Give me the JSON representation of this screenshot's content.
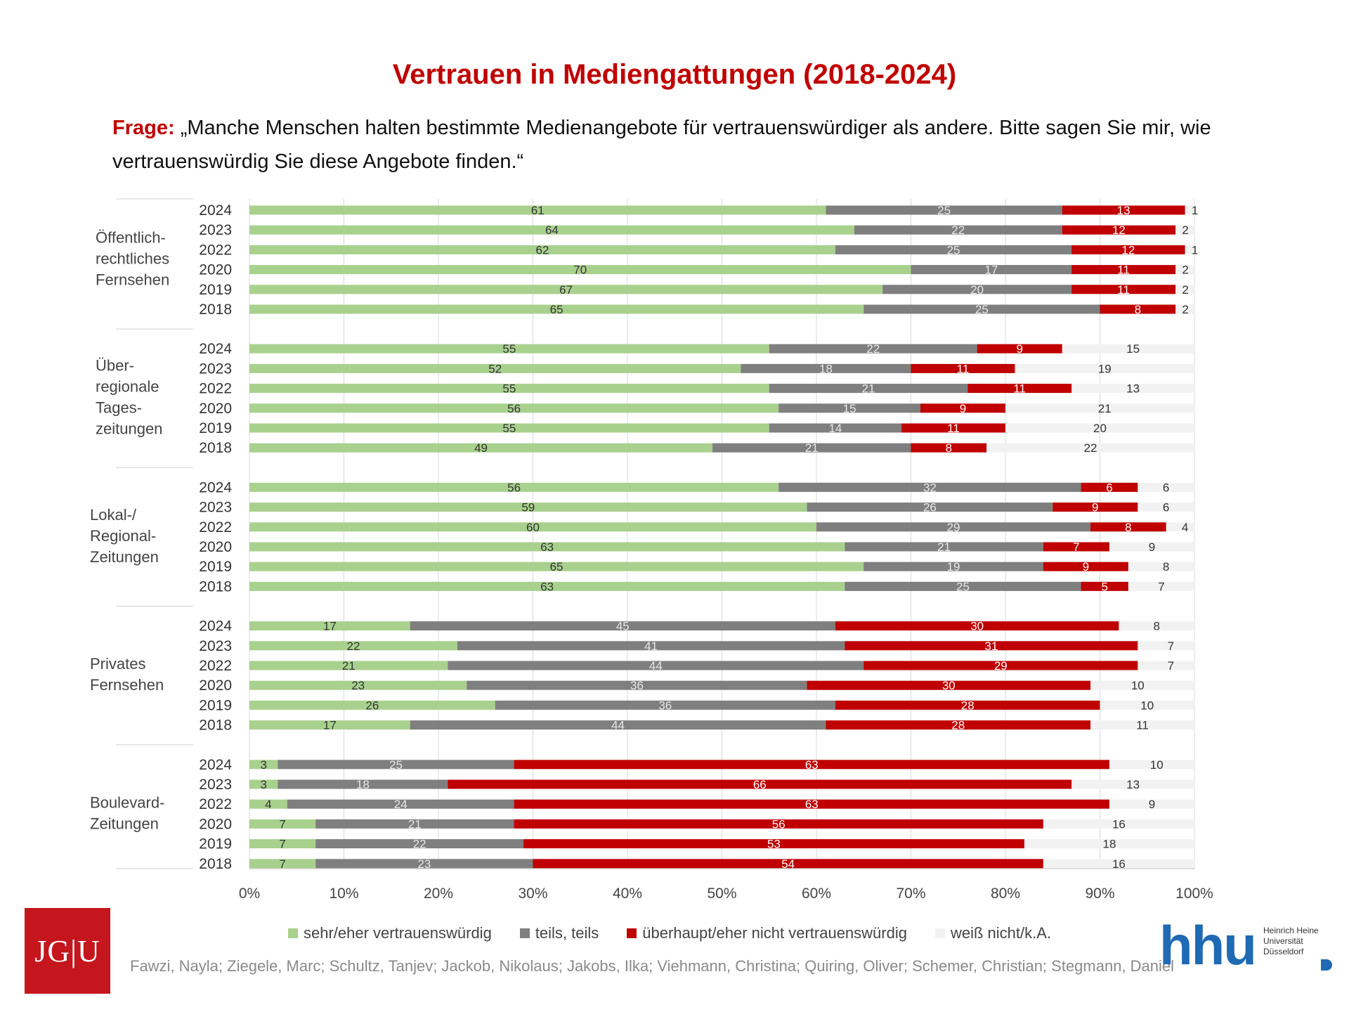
{
  "title": "Vertrauen in Mediengattungen (2018-2024)",
  "question": {
    "label": "Frage:",
    "text": " „Manche Menschen halten bestimmte Medienangebote für vertrauenswürdiger als andere. Bitte sagen Sie mir, wie vertrauenswürdig Sie diese Angebote finden.“"
  },
  "colors": {
    "sehr_eher": "#a9d18e",
    "teils": "#7f7f7f",
    "nicht": "#c00000",
    "weiss_nicht": "#f2f2f2",
    "title": "#c00000"
  },
  "legend": [
    {
      "label": "sehr/eher vertrauenswürdig",
      "color": "#a9d18e"
    },
    {
      "label": "teils, teils",
      "color": "#7f7f7f"
    },
    {
      "label": "überhaupt/eher nicht vertrauenswürdig",
      "color": "#c00000"
    },
    {
      "label": "weiß nicht/k.A.",
      "color": "#f2f2f2"
    }
  ],
  "authors": "Fawzi, Nayla; Ziegele, Marc; Schultz, Tanjev; Jackob, Nikolaus; Jakobs, Ilka; Viehmann, Christina; Quiring, Oliver; Schemer, Christian; Stegmann, Daniel",
  "logos": {
    "jgu": "JG|U",
    "hhu_word": "hhu",
    "hhu_sub": "Heinrich Heine Universität Düsseldorf"
  },
  "chart_data": {
    "type": "bar",
    "orientation": "horizontal",
    "stacked": "100%",
    "xlim": [
      0,
      100
    ],
    "x_ticks": [
      "0%",
      "10%",
      "20%",
      "30%",
      "40%",
      "50%",
      "60%",
      "70%",
      "80%",
      "90%",
      "100%"
    ],
    "series_names": [
      "sehr/eher vertrauenswürdig",
      "teils, teils",
      "überhaupt/eher nicht vertrauenswürdig",
      "weiß nicht/k.A."
    ],
    "groups": [
      {
        "label": "Öffentlich-\nrechtliches\nFernsehen",
        "rows": [
          {
            "year": "2024",
            "values": [
              61,
              25,
              13,
              1
            ]
          },
          {
            "year": "2023",
            "values": [
              64,
              22,
              12,
              2
            ]
          },
          {
            "year": "2022",
            "values": [
              62,
              25,
              12,
              1
            ]
          },
          {
            "year": "2020",
            "values": [
              70,
              17,
              11,
              2
            ]
          },
          {
            "year": "2019",
            "values": [
              67,
              20,
              11,
              2
            ]
          },
          {
            "year": "2018",
            "values": [
              65,
              25,
              8,
              2
            ]
          }
        ]
      },
      {
        "label": "Über-\nregionale\nTages-\nzeitungen",
        "rows": [
          {
            "year": "2024",
            "values": [
              55,
              22,
              9,
              15
            ]
          },
          {
            "year": "2023",
            "values": [
              52,
              18,
              11,
              19
            ]
          },
          {
            "year": "2022",
            "values": [
              55,
              21,
              11,
              13
            ]
          },
          {
            "year": "2020",
            "values": [
              56,
              15,
              9,
              21
            ]
          },
          {
            "year": "2019",
            "values": [
              55,
              14,
              11,
              20
            ]
          },
          {
            "year": "2018",
            "values": [
              49,
              21,
              8,
              22
            ]
          }
        ]
      },
      {
        "label": "Lokal-/\nRegional-\nZeitungen",
        "rows": [
          {
            "year": "2024",
            "values": [
              56,
              32,
              6,
              6
            ]
          },
          {
            "year": "2023",
            "values": [
              59,
              26,
              9,
              6
            ]
          },
          {
            "year": "2022",
            "values": [
              60,
              29,
              8,
              4
            ]
          },
          {
            "year": "2020",
            "values": [
              63,
              21,
              7,
              9
            ]
          },
          {
            "year": "2019",
            "values": [
              65,
              19,
              9,
              8
            ]
          },
          {
            "year": "2018",
            "values": [
              63,
              25,
              5,
              7
            ]
          }
        ]
      },
      {
        "label": "Privates\nFernsehen",
        "rows": [
          {
            "year": "2024",
            "values": [
              17,
              45,
              30,
              8
            ]
          },
          {
            "year": "2023",
            "values": [
              22,
              41,
              31,
              7
            ]
          },
          {
            "year": "2022",
            "values": [
              21,
              44,
              29,
              7
            ]
          },
          {
            "year": "2020",
            "values": [
              23,
              36,
              30,
              10
            ]
          },
          {
            "year": "2019",
            "values": [
              26,
              36,
              28,
              10
            ]
          },
          {
            "year": "2018",
            "values": [
              17,
              44,
              28,
              11
            ]
          }
        ]
      },
      {
        "label": "Boulevard-\nZeitungen",
        "rows": [
          {
            "year": "2024",
            "values": [
              3,
              25,
              63,
              10
            ]
          },
          {
            "year": "2023",
            "values": [
              3,
              18,
              66,
              13
            ]
          },
          {
            "year": "2022",
            "values": [
              4,
              24,
              63,
              9
            ]
          },
          {
            "year": "2020",
            "values": [
              7,
              21,
              56,
              16
            ]
          },
          {
            "year": "2019",
            "values": [
              7,
              22,
              53,
              18
            ]
          },
          {
            "year": "2018",
            "values": [
              7,
              23,
              54,
              16
            ]
          }
        ]
      }
    ]
  }
}
